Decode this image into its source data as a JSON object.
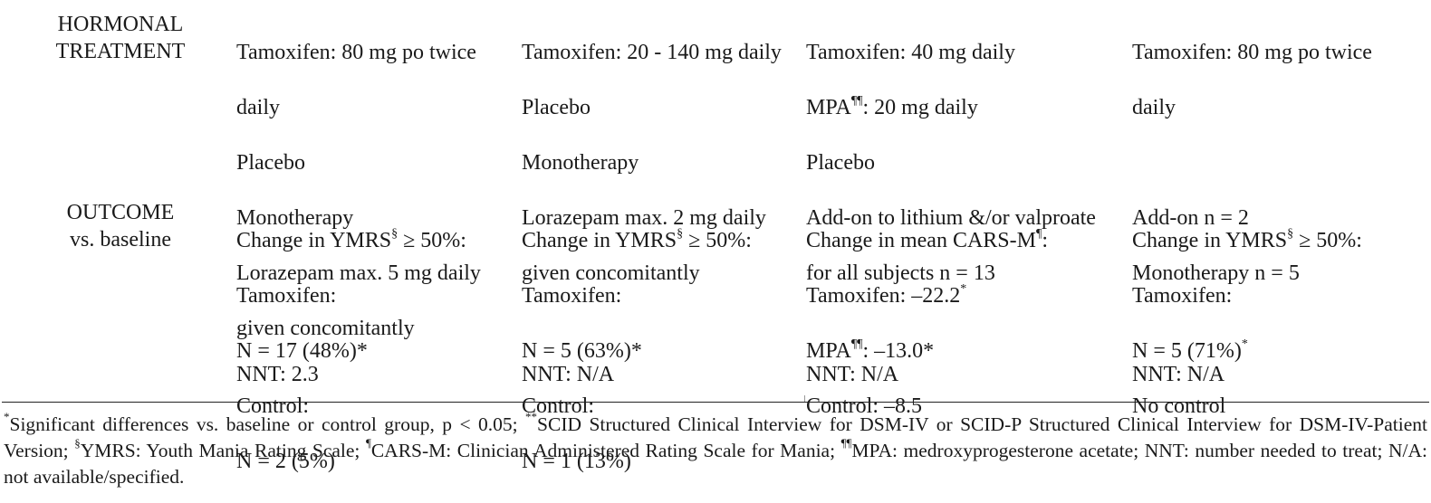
{
  "rows": {
    "hormonal_label_1": "HORMONAL",
    "hormonal_label_2": "TREATMENT",
    "outcome_label_1": "OUTCOME",
    "outcome_label_2": "vs. baseline"
  },
  "hormonal": {
    "col1": [
      "Tamoxifen: 80 mg po twice",
      "daily",
      "Placebo",
      "Monotherapy",
      "Lorazepam max. 5 mg daily",
      "given concomitantly"
    ],
    "col2": [
      "Tamoxifen: 20 - 140 mg daily",
      "Placebo",
      "Monotherapy",
      "Lorazepam max. 2 mg daily",
      "given concomitantly"
    ],
    "col3_l1": "Tamoxifen: 40 mg daily",
    "col3_l2_pre": "MPA",
    "col3_l2_sup": "¶¶",
    "col3_l2_post": ": 20 mg daily",
    "col3_rest": [
      "Placebo",
      "Add-on to lithium &/or valproate",
      "for all subjects n = 13"
    ],
    "col4": [
      "Tamoxifen: 80 mg po twice",
      "daily",
      "",
      "Add-on n = 2",
      "Monotherapy n = 5"
    ]
  },
  "outcome": {
    "ymrs_pre": "Change in YMRS",
    "ymrs_sup": "§",
    "ymrs_post": " ≥ 50%:",
    "col1": [
      "Tamoxifen:",
      "N = 17 (48%)*",
      "Control:",
      "N = 2 (5%)"
    ],
    "col2": [
      "Tamoxifen:",
      "N = 5 (63%)*",
      "Control:",
      "N = 1 (13%)"
    ],
    "col3_l1_pre": "Change in mean CARS-M",
    "col3_l1_sup": "¶",
    "col3_l1_post": ":",
    "col3_l2_pre": "Tamoxifen: –22.2",
    "col3_l2_sup": "*",
    "col3_l3_pre": "MPA",
    "col3_l3_sup": "¶¶",
    "col3_l3_post": ": –13.0*",
    "col3_l4": "Control: –8.5",
    "col4_l1": "Tamoxifen:",
    "col4_l2_pre": "N = 5 (71%)",
    "col4_l2_sup": "*",
    "col4_l3": "No control"
  },
  "nnt": {
    "col1": "NNT: 2.3",
    "col2": "NNT: N/A",
    "col3": "NNT: N/A",
    "col4": "NNT: N/A"
  },
  "footnote": {
    "sup1": "*",
    "t1": "Significant differences vs. baseline or control group, p < 0.05; ",
    "sup2": "**",
    "t2": "SCID Structured Clinical Interview for DSM-IV or SCID-P Structured Clinical Interview for DSM-IV-Patient Version; ",
    "sup3": "§",
    "t3": "YMRS: Youth Mania Rating Scale; ",
    "sup4": "¶",
    "t4": "CARS-M: Clinician Administered Rating Scale for Mania; ",
    "sup5": "¶¶",
    "t5": "MPA: medroxyprogesterone acetate; NNT: number needed to treat; N/A: not available/specified."
  }
}
